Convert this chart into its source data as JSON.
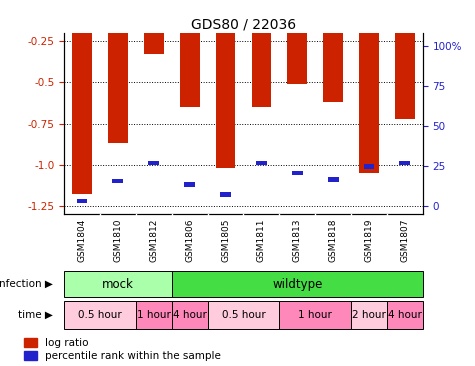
{
  "title": "GDS80 / 22036",
  "samples": [
    "GSM1804",
    "GSM1810",
    "GSM1812",
    "GSM1806",
    "GSM1805",
    "GSM1811",
    "GSM1813",
    "GSM1818",
    "GSM1819",
    "GSM1807"
  ],
  "log_ratio": [
    -1.18,
    -0.87,
    -0.33,
    -0.65,
    -1.02,
    -0.65,
    -0.51,
    -0.62,
    -1.05,
    -0.72
  ],
  "percentile": [
    3,
    15,
    26,
    13,
    7,
    26,
    20,
    16,
    24,
    26
  ],
  "y_ticks": [
    -1.25,
    -1.0,
    -0.75,
    -0.5,
    -0.25
  ],
  "y2_ticks": [
    0,
    25,
    50,
    75,
    100
  ],
  "infection_groups": [
    {
      "label": "mock",
      "start": 0,
      "end": 3,
      "color": "#AAFFAA"
    },
    {
      "label": "wildtype",
      "start": 3,
      "end": 10,
      "color": "#44DD44"
    }
  ],
  "time_groups": [
    {
      "label": "0.5 hour",
      "start": 0,
      "end": 2,
      "color": "#FFCCDD"
    },
    {
      "label": "1 hour",
      "start": 2,
      "end": 3,
      "color": "#FF88BB"
    },
    {
      "label": "4 hour",
      "start": 3,
      "end": 4,
      "color": "#FF88BB"
    },
    {
      "label": "0.5 hour",
      "start": 4,
      "end": 6,
      "color": "#FFCCDD"
    },
    {
      "label": "1 hour",
      "start": 6,
      "end": 8,
      "color": "#FF88BB"
    },
    {
      "label": "2 hour",
      "start": 8,
      "end": 9,
      "color": "#FFCCDD"
    },
    {
      "label": "4 hour",
      "start": 9,
      "end": 10,
      "color": "#FF88BB"
    }
  ],
  "bar_color": "#CC2200",
  "blue_color": "#2222CC",
  "label_color_left": "#CC2200",
  "label_color_right": "#2222CC",
  "bar_width": 0.55,
  "legend_items": [
    "log ratio",
    "percentile rank within the sample"
  ]
}
